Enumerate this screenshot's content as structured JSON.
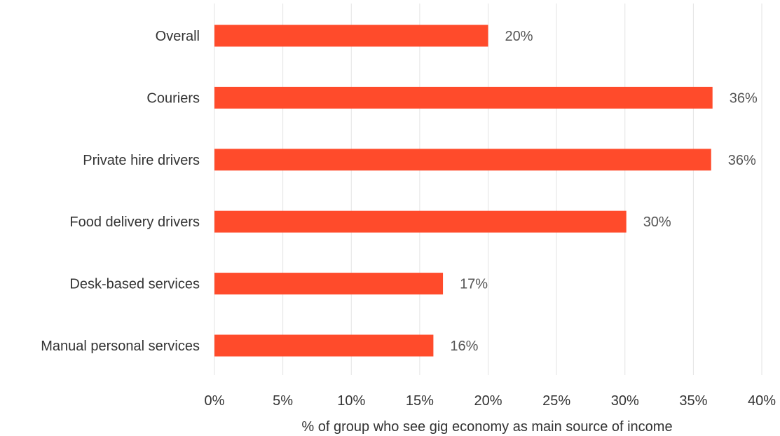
{
  "chart_data": {
    "type": "bar",
    "orientation": "horizontal",
    "categories": [
      "Overall",
      "Couriers",
      "Private hire drivers",
      "Food delivery drivers",
      "Desk-based services",
      "Manual personal services"
    ],
    "values": [
      20,
      36.4,
      36.3,
      30.1,
      16.7,
      16.0
    ],
    "value_labels": [
      "20%",
      "36%",
      "36%",
      "30%",
      "17%",
      "16%"
    ],
    "xlabel": "% of group who see gig economy as main source of income",
    "xlim": [
      0,
      40
    ],
    "xticks": [
      0,
      5,
      10,
      15,
      20,
      25,
      30,
      35,
      40
    ],
    "xtick_labels": [
      "0%",
      "5%",
      "10%",
      "15%",
      "20%",
      "25%",
      "30%",
      "35%",
      "40%"
    ],
    "grid": "vertical",
    "legend": "none",
    "bar_color": "#ff4b2b"
  }
}
